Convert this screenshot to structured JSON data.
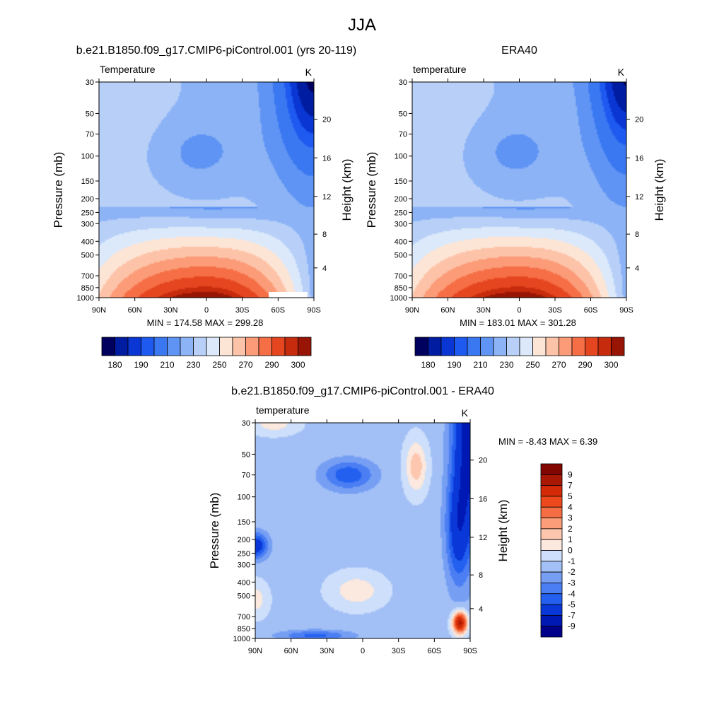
{
  "figure": {
    "title": "JJA"
  },
  "chart_data": [
    {
      "type": "heatmap",
      "title": "b.e21.B1850.f09_g17.CMIP6-piControl.001 (yrs 20-119)",
      "left_label": "Temperature",
      "units": "K",
      "xlabel": "",
      "ylabel": "Pressure (mb)",
      "ylabel_right": "Height (km)",
      "x_ticks": [
        "90N",
        "60N",
        "30N",
        "0",
        "30S",
        "60S",
        "90S"
      ],
      "y_ticks": [
        "30",
        "50",
        "70",
        "100",
        "150",
        "200",
        "250",
        "300",
        "400",
        "500",
        "700",
        "850",
        "1000"
      ],
      "height_ticks": [
        "20",
        "16",
        "12",
        "8",
        "4"
      ],
      "stats": "MIN = 174.58  MAX = 299.28",
      "colorbar_labels": [
        "180",
        "190",
        "210",
        "230",
        "250",
        "270",
        "290",
        "300"
      ],
      "levels": [
        175,
        180,
        185,
        190,
        200,
        210,
        220,
        230,
        240,
        250,
        260,
        270,
        280,
        290,
        295,
        300
      ],
      "range": [
        174.58,
        299.28
      ]
    },
    {
      "type": "heatmap",
      "title": "ERA40",
      "left_label": "temperature",
      "units": "K",
      "xlabel": "",
      "ylabel": "Pressure (mb)",
      "ylabel_right": "Height (km)",
      "x_ticks": [
        "90N",
        "60N",
        "30N",
        "0",
        "30S",
        "60S",
        "90S"
      ],
      "y_ticks": [
        "30",
        "50",
        "70",
        "100",
        "150",
        "200",
        "250",
        "300",
        "400",
        "500",
        "700",
        "850",
        "1000"
      ],
      "height_ticks": [
        "20",
        "16",
        "12",
        "8",
        "4"
      ],
      "stats": "MIN = 183.01  MAX = 301.28",
      "colorbar_labels": [
        "180",
        "190",
        "210",
        "230",
        "250",
        "270",
        "290",
        "300"
      ],
      "levels": [
        175,
        180,
        185,
        190,
        200,
        210,
        220,
        230,
        240,
        250,
        260,
        270,
        280,
        290,
        295,
        300
      ],
      "range": [
        183.01,
        301.28
      ]
    },
    {
      "type": "heatmap",
      "title": "b.e21.B1850.f09_g17.CMIP6-piControl.001 - ERA40",
      "left_label": "temperature",
      "units": "K",
      "xlabel": "",
      "ylabel": "Pressure (mb)",
      "ylabel_right": "Height (km)",
      "x_ticks": [
        "90N",
        "60N",
        "30N",
        "0",
        "30S",
        "60S",
        "90S"
      ],
      "y_ticks": [
        "30",
        "50",
        "70",
        "100",
        "150",
        "200",
        "250",
        "300",
        "400",
        "500",
        "700",
        "850",
        "1000"
      ],
      "height_ticks": [
        "20",
        "16",
        "12",
        "8",
        "4"
      ],
      "stats": "MIN =  -8.43  MAX =   6.39",
      "colorbar_labels": [
        "9",
        "7",
        "5",
        "4",
        "3",
        "2",
        "1",
        "0",
        "-1",
        "-2",
        "-3",
        "-4",
        "-5",
        "-7",
        "-9"
      ],
      "range": [
        -8.43,
        6.39
      ]
    }
  ],
  "palette": {
    "temperature": [
      "#00005e",
      "#001ca0",
      "#0a37d4",
      "#1f5af0",
      "#3a78f2",
      "#5f94f4",
      "#8cb3f6",
      "#b8d0f8",
      "#dbe9fb",
      "#fde5d6",
      "#fdc3a8",
      "#fb9b77",
      "#f56e46",
      "#e54620",
      "#c52b0c",
      "#981505",
      "#6e0a02"
    ],
    "difference": [
      "#00008b",
      "#0018b4",
      "#0a38d8",
      "#2360f0",
      "#4a7ef2",
      "#769ff4",
      "#a2bff6",
      "#cddffa",
      "#fbe8de",
      "#fdc6ae",
      "#fb9d78",
      "#f56d42",
      "#ec4a1c",
      "#d32a08",
      "#a81804",
      "#820600"
    ]
  }
}
